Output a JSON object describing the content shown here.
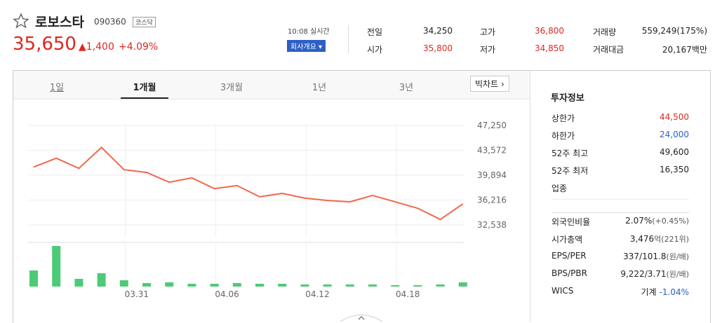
{
  "header": {
    "name": "로보스타",
    "code": "090360",
    "market": "코스닥",
    "price": "35,650",
    "change": "1,400",
    "change_pct": "+4.09%",
    "time": "10:08 실시간",
    "company_button": "회사개요"
  },
  "quotes": [
    [
      {
        "label": "전일",
        "value": "34,250"
      },
      {
        "label": "고가",
        "value": "36,800"
      },
      {
        "label": "거래량",
        "value": "559,249(175%)"
      }
    ],
    [
      {
        "label": "시가",
        "value": "35,800"
      },
      {
        "label": "저가",
        "value": "34,850"
      },
      {
        "label": "거래대금",
        "value": "20,167백만"
      }
    ]
  ],
  "tabs": [
    "1일",
    "1개월",
    "3개월",
    "1년",
    "3년"
  ],
  "big_chart": "빅차트",
  "chart_data": [
    {
      "type": "line",
      "color": "#f2674a",
      "categories": [
        null,
        null,
        null,
        null,
        "03.31",
        null,
        null,
        null,
        "04.06",
        null,
        null,
        null,
        "04.12",
        null,
        null,
        null,
        "04.18",
        null,
        null,
        null
      ],
      "values": [
        41100,
        42400,
        40900,
        44000,
        40700,
        40300,
        38850,
        39500,
        37900,
        38350,
        36700,
        37200,
        36500,
        36150,
        35950,
        36900,
        35950,
        35000,
        33350,
        35650
      ],
      "ylim": [
        30780,
        49010
      ],
      "yticks": [
        {
          "value": 47250,
          "label": "47,250"
        },
        {
          "value": 43572,
          "label": "43,572"
        },
        {
          "value": 39894,
          "label": "39,894"
        },
        {
          "value": 36216,
          "label": "36,216"
        },
        {
          "value": 32538,
          "label": "32,538"
        }
      ],
      "grid": true
    },
    {
      "type": "bar",
      "color": "#4ccb76",
      "values": [
        23,
        58,
        11,
        19,
        9,
        5,
        6,
        4,
        4,
        5,
        4,
        4,
        3,
        3,
        3,
        3,
        2,
        2,
        3,
        6
      ]
    }
  ],
  "invest": {
    "title": "투자정보",
    "group1": [
      {
        "label": "상한가",
        "value": "44,500"
      },
      {
        "label": "하한가",
        "value": "24,000"
      },
      {
        "label": "52주 최고",
        "value": "49,600"
      },
      {
        "label": "52주 최저",
        "value": "16,350"
      },
      {
        "label": "업종"
      }
    ],
    "group2": [
      {
        "label": "외국인비율",
        "value": "2.07%",
        "sub": "(+0.45%)"
      },
      {
        "label": "시가총액",
        "value": "3,476",
        "sub": "억(221위)"
      },
      {
        "label": "EPS/PER",
        "value": "337/101.8",
        "sub": "(원/배)"
      },
      {
        "label": "BPS/PBR",
        "value": "9,222/3.71",
        "sub": "(원/배)"
      },
      {
        "label": "WICS",
        "value": "기계",
        "sub": "-1.04%"
      }
    ]
  }
}
